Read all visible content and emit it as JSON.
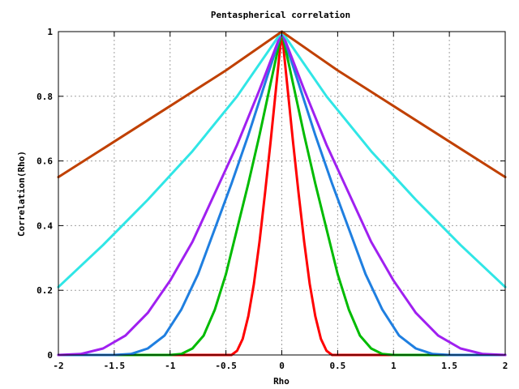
{
  "chart_data": {
    "type": "line",
    "title": "Pentaspherical correlation",
    "xlabel": "Rho",
    "ylabel": "Correlation(Rho)",
    "xlim": [
      -2,
      2
    ],
    "ylim": [
      0,
      1
    ],
    "grid": true,
    "x_ticks": [
      "-2",
      "-1.5",
      "-1",
      "-0.5",
      "0",
      "0.5",
      "1",
      "1.5",
      "2"
    ],
    "y_ticks": [
      "0",
      "0.2",
      "0.4",
      "0.6",
      "0.8",
      "1"
    ],
    "series": [
      {
        "color": "#ff0000",
        "x": [
          -2,
          -0.5,
          -0.45,
          -0.4,
          -0.35,
          -0.3,
          -0.25,
          -0.2,
          -0.15,
          -0.1,
          -0.05,
          0,
          0.05,
          0.1,
          0.15,
          0.2,
          0.25,
          0.3,
          0.35,
          0.4,
          0.45,
          0.5,
          2
        ],
        "y": [
          0,
          0,
          0,
          0.013,
          0.05,
          0.12,
          0.22,
          0.35,
          0.5,
          0.66,
          0.83,
          1,
          0.83,
          0.66,
          0.5,
          0.35,
          0.22,
          0.12,
          0.05,
          0.013,
          0,
          0,
          0
        ]
      },
      {
        "color": "#00bb00",
        "x": [
          -2,
          -1.0,
          -0.9,
          -0.8,
          -0.7,
          -0.6,
          -0.5,
          -0.4,
          -0.3,
          -0.2,
          -0.1,
          0,
          0.1,
          0.2,
          0.3,
          0.4,
          0.5,
          0.6,
          0.7,
          0.8,
          0.9,
          1.0,
          2
        ],
        "y": [
          0,
          0,
          0.003,
          0.02,
          0.06,
          0.14,
          0.25,
          0.39,
          0.53,
          0.68,
          0.84,
          1,
          0.84,
          0.68,
          0.53,
          0.39,
          0.25,
          0.14,
          0.06,
          0.02,
          0.003,
          0,
          0
        ]
      },
      {
        "color": "#1f7fe0",
        "x": [
          -2,
          -1.5,
          -1.35,
          -1.2,
          -1.05,
          -0.9,
          -0.75,
          -0.6,
          -0.45,
          -0.3,
          -0.15,
          0,
          0.15,
          0.3,
          0.45,
          0.6,
          0.75,
          0.9,
          1.05,
          1.2,
          1.35,
          1.5,
          2
        ],
        "y": [
          0,
          0,
          0.003,
          0.02,
          0.06,
          0.14,
          0.25,
          0.39,
          0.53,
          0.68,
          0.84,
          1,
          0.84,
          0.68,
          0.53,
          0.39,
          0.25,
          0.14,
          0.06,
          0.02,
          0.003,
          0,
          0
        ]
      },
      {
        "color": "#a020f0",
        "x": [
          -2,
          -1.8,
          -1.6,
          -1.4,
          -1.2,
          -1.0,
          -0.8,
          -0.6,
          -0.4,
          -0.2,
          0,
          0.2,
          0.4,
          0.6,
          0.8,
          1.0,
          1.2,
          1.4,
          1.6,
          1.8,
          2
        ],
        "y": [
          0,
          0.003,
          0.02,
          0.06,
          0.13,
          0.23,
          0.35,
          0.5,
          0.65,
          0.82,
          1,
          0.82,
          0.65,
          0.5,
          0.35,
          0.23,
          0.13,
          0.06,
          0.02,
          0.003,
          0
        ]
      },
      {
        "color": "#30e6e6",
        "x": [
          -2,
          -1.6,
          -1.2,
          -0.8,
          -0.4,
          0,
          0.4,
          0.8,
          1.2,
          1.6,
          2
        ],
        "y": [
          0.21,
          0.34,
          0.48,
          0.63,
          0.8,
          1,
          0.8,
          0.63,
          0.48,
          0.34,
          0.21
        ]
      },
      {
        "color": "#c04000",
        "x": [
          -2,
          -1.5,
          -1,
          -0.5,
          0,
          0.5,
          1,
          1.5,
          2
        ],
        "y": [
          0.55,
          0.66,
          0.77,
          0.88,
          1,
          0.88,
          0.77,
          0.66,
          0.55
        ]
      }
    ]
  }
}
